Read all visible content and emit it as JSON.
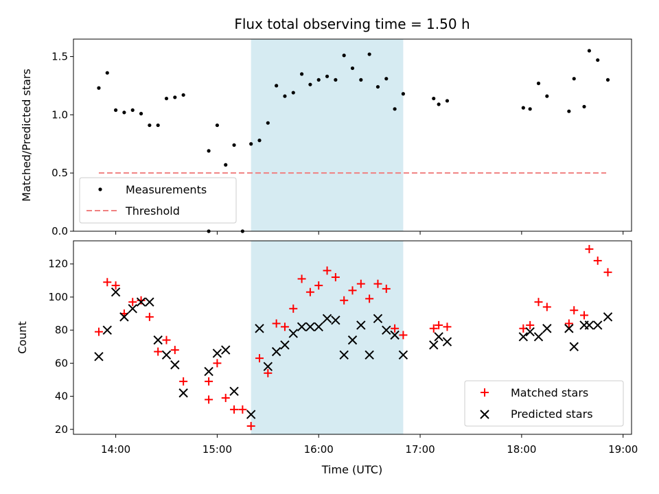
{
  "chart_data": {
    "type": "scatter",
    "title": "Flux total observing time = 1.50 h",
    "xlabel": "Time (UTC)",
    "xlim": [
      "13:35",
      "19:05"
    ],
    "x_ticks": [
      "14:00",
      "15:00",
      "16:00",
      "17:00",
      "18:00",
      "19:00"
    ],
    "highlight_interval": {
      "start": "15:20",
      "end": "16:50",
      "color": "#add8e6"
    },
    "top": {
      "ylabel": "Matched/Predicted stars",
      "ylim": [
        0,
        1.65
      ],
      "y_ticks": [
        "0.0",
        "0.5",
        "1.0",
        "1.5"
      ],
      "legend_position": "lower-left",
      "series": [
        {
          "name": "Measurements",
          "color": "#000000",
          "marker": "dot",
          "points": [
            [
              "13:50",
              1.23
            ],
            [
              "13:55",
              1.36
            ],
            [
              "14:00",
              1.04
            ],
            [
              "14:05",
              1.02
            ],
            [
              "14:10",
              1.04
            ],
            [
              "14:15",
              1.01
            ],
            [
              "14:20",
              0.91
            ],
            [
              "14:25",
              0.91
            ],
            [
              "14:30",
              1.14
            ],
            [
              "14:35",
              1.15
            ],
            [
              "14:40",
              1.17
            ],
            [
              "14:55",
              0.69
            ],
            [
              "15:00",
              0.91
            ],
            [
              "15:05",
              0.57
            ],
            [
              "15:10",
              0.74
            ],
            [
              "15:20",
              0.75
            ],
            [
              "15:25",
              0.78
            ],
            [
              "15:30",
              0.93
            ],
            [
              "15:35",
              1.25
            ],
            [
              "15:40",
              1.16
            ],
            [
              "15:45",
              1.19
            ],
            [
              "15:50",
              1.35
            ],
            [
              "15:55",
              1.26
            ],
            [
              "16:00",
              1.3
            ],
            [
              "16:05",
              1.33
            ],
            [
              "16:10",
              1.3
            ],
            [
              "16:15",
              1.51
            ],
            [
              "16:20",
              1.4
            ],
            [
              "16:25",
              1.3
            ],
            [
              "16:30",
              1.52
            ],
            [
              "16:35",
              1.24
            ],
            [
              "16:40",
              1.31
            ],
            [
              "16:45",
              1.05
            ],
            [
              "16:50",
              1.18
            ],
            [
              "17:08",
              1.14
            ],
            [
              "17:11",
              1.09
            ],
            [
              "17:16",
              1.12
            ],
            [
              "18:01",
              1.06
            ],
            [
              "18:05",
              1.05
            ],
            [
              "18:10",
              1.27
            ],
            [
              "18:15",
              1.16
            ],
            [
              "18:28",
              1.03
            ],
            [
              "18:31",
              1.31
            ],
            [
              "18:37",
              1.07
            ],
            [
              "18:40",
              1.55
            ],
            [
              "18:45",
              1.47
            ],
            [
              "18:51",
              1.3
            ],
            [
              "14:55",
              0.0
            ],
            [
              "15:15",
              0.0
            ]
          ]
        },
        {
          "name": "Threshold",
          "color": "#f08080",
          "style": "dashed",
          "points": [
            [
              "13:50",
              0.5
            ],
            [
              "18:50",
              0.5
            ]
          ]
        }
      ]
    },
    "bottom": {
      "ylabel": "Count",
      "ylim": [
        17,
        134
      ],
      "y_ticks": [
        "20",
        "40",
        "60",
        "80",
        "100",
        "120"
      ],
      "legend_position": "lower-right",
      "series": [
        {
          "name": "Matched stars",
          "color": "#ff0000",
          "marker": "plus",
          "points": [
            [
              "13:50",
              79
            ],
            [
              "13:55",
              109
            ],
            [
              "14:00",
              107
            ],
            [
              "14:05",
              90
            ],
            [
              "14:10",
              97
            ],
            [
              "14:15",
              98
            ],
            [
              "14:20",
              88
            ],
            [
              "14:25",
              67
            ],
            [
              "14:30",
              74
            ],
            [
              "14:35",
              68
            ],
            [
              "14:40",
              49
            ],
            [
              "14:55",
              38
            ],
            [
              "15:00",
              60
            ],
            [
              "15:05",
              39
            ],
            [
              "15:10",
              32
            ],
            [
              "15:15",
              32
            ],
            [
              "15:20",
              22
            ],
            [
              "15:25",
              63
            ],
            [
              "15:30",
              54
            ],
            [
              "15:35",
              84
            ],
            [
              "15:40",
              82
            ],
            [
              "15:45",
              93
            ],
            [
              "15:50",
              111
            ],
            [
              "15:55",
              103
            ],
            [
              "16:00",
              107
            ],
            [
              "16:05",
              116
            ],
            [
              "16:10",
              112
            ],
            [
              "16:15",
              98
            ],
            [
              "16:20",
              104
            ],
            [
              "16:25",
              108
            ],
            [
              "16:30",
              99
            ],
            [
              "16:35",
              108
            ],
            [
              "16:40",
              105
            ],
            [
              "16:45",
              81
            ],
            [
              "16:50",
              77
            ],
            [
              "17:08",
              81
            ],
            [
              "17:11",
              83
            ],
            [
              "17:16",
              82
            ],
            [
              "18:01",
              81
            ],
            [
              "18:05",
              83
            ],
            [
              "18:10",
              97
            ],
            [
              "18:15",
              94
            ],
            [
              "18:28",
              84
            ],
            [
              "18:31",
              92
            ],
            [
              "18:37",
              89
            ],
            [
              "18:40",
              129
            ],
            [
              "18:45",
              122
            ],
            [
              "18:51",
              115
            ],
            [
              "14:55",
              49
            ]
          ]
        },
        {
          "name": "Predicted stars",
          "color": "#000000",
          "marker": "x",
          "points": [
            [
              "13:50",
              64
            ],
            [
              "13:55",
              80
            ],
            [
              "14:00",
              103
            ],
            [
              "14:05",
              88
            ],
            [
              "14:10",
              93
            ],
            [
              "14:15",
              97
            ],
            [
              "14:20",
              97
            ],
            [
              "14:25",
              74
            ],
            [
              "14:30",
              65
            ],
            [
              "14:35",
              59
            ],
            [
              "14:40",
              42
            ],
            [
              "14:55",
              55
            ],
            [
              "15:00",
              66
            ],
            [
              "15:05",
              68
            ],
            [
              "15:10",
              43
            ],
            [
              "15:20",
              29
            ],
            [
              "15:25",
              81
            ],
            [
              "15:30",
              58
            ],
            [
              "15:35",
              67
            ],
            [
              "15:40",
              71
            ],
            [
              "15:45",
              78
            ],
            [
              "15:50",
              82
            ],
            [
              "15:55",
              82
            ],
            [
              "16:00",
              82
            ],
            [
              "16:05",
              87
            ],
            [
              "16:10",
              86
            ],
            [
              "16:15",
              65
            ],
            [
              "16:20",
              74
            ],
            [
              "16:25",
              83
            ],
            [
              "16:30",
              65
            ],
            [
              "16:35",
              87
            ],
            [
              "16:40",
              80
            ],
            [
              "16:45",
              77
            ],
            [
              "16:50",
              65
            ],
            [
              "17:08",
              71
            ],
            [
              "17:11",
              76
            ],
            [
              "17:16",
              73
            ],
            [
              "18:01",
              76
            ],
            [
              "18:05",
              79
            ],
            [
              "18:10",
              76
            ],
            [
              "18:15",
              81
            ],
            [
              "18:28",
              81
            ],
            [
              "18:31",
              70
            ],
            [
              "18:37",
              83
            ],
            [
              "18:40",
              83
            ],
            [
              "18:45",
              83
            ],
            [
              "18:51",
              88
            ]
          ]
        }
      ]
    }
  }
}
